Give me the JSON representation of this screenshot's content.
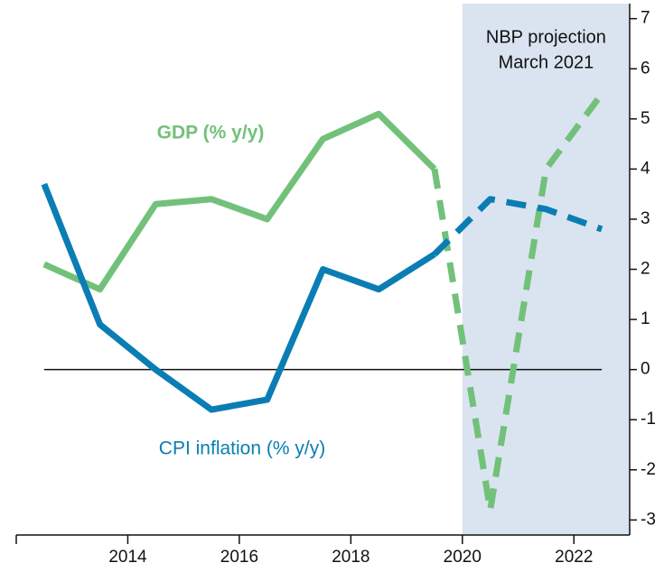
{
  "chart_data": {
    "type": "line",
    "x": [
      2012.5,
      2013.5,
      2014.5,
      2015.5,
      2016.5,
      2017.5,
      2018.5,
      2019.5,
      2020.5,
      2021.5,
      2022.5
    ],
    "xlim": [
      2012,
      2023
    ],
    "xticks": [
      2014,
      2016,
      2018,
      2020,
      2022
    ],
    "ylim": [
      -3.3,
      7.3
    ],
    "yticks": [
      -3,
      -2,
      -1,
      0,
      1,
      2,
      3,
      4,
      5,
      6,
      7
    ],
    "y_axis_side": "right",
    "reference_line": 0,
    "projection_from_x": 2019.5,
    "shade": {
      "xlim": [
        2020,
        2023
      ],
      "color": "#dae4f0",
      "label_lines": [
        "NBP projection",
        "March 2021"
      ]
    },
    "series": [
      {
        "name": "GDP (% y/y)",
        "color": "#72c17a",
        "values": [
          2.1,
          1.6,
          3.3,
          3.4,
          3.0,
          4.6,
          5.1,
          4.0,
          -2.8,
          4.0,
          5.5
        ]
      },
      {
        "name": "CPI inflation (% y/y)",
        "color": "#0a7db4",
        "values": [
          3.7,
          0.9,
          0.0,
          -0.8,
          -0.6,
          2.0,
          1.6,
          2.3,
          3.4,
          3.2,
          2.8
        ]
      }
    ]
  }
}
